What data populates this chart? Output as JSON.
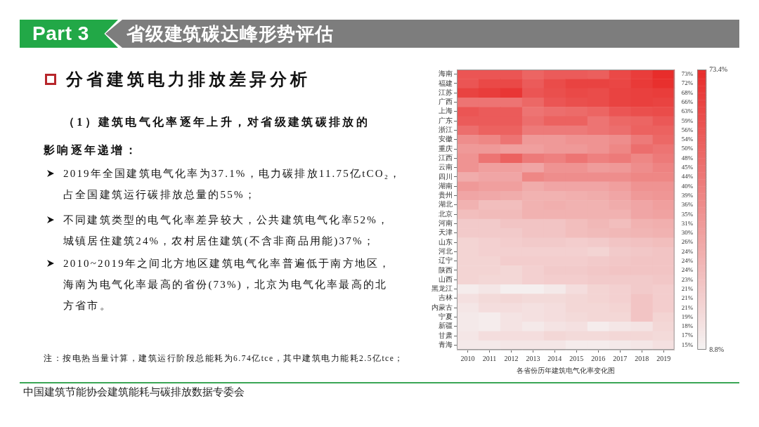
{
  "chart_data": {
    "type": "heatmap",
    "title": "省级建筑碳达峰形势评估",
    "subtitle": "分省建筑电力排放差异分析",
    "xlabel": "各省份历年建筑电气化率变化图",
    "annotations": [
      "Part 3",
      "（1）建筑电气化率逐年上升，对省级建筑碳排放的影响逐年递增：",
      "2019年全国建筑电气化率为37.1%，电力碳排放11.75亿tCO₂，占全国建筑运行碳排放总量的55%；",
      "不同建筑类型的电气化率差异较大，公共建筑电气化率52%，城镇居住建筑24%，农村居住建筑(不含非商品用能)37%；",
      "2010~2019年之间北方地区建筑电气化率普遍低于南方地区，海南为电气化率最高的省份(73%)，北京为电气化率最高的北方省市。",
      "注：按电热当量计算，建筑运行阶段总能耗为6.74亿tce，其中建筑电力能耗2.5亿tce；",
      "中国建筑节能协会建筑能耗与碳排放数据专委会"
    ],
    "categories": [
      "2010",
      "2011",
      "2012",
      "2013",
      "2014",
      "2015",
      "2016",
      "2017",
      "2018",
      "2019"
    ],
    "y_categories": [
      "海南",
      "福建",
      "江苏",
      "广西",
      "上海",
      "广东",
      "浙江",
      "安徽",
      "重庆",
      "江西",
      "云南",
      "四川",
      "湖南",
      "贵州",
      "湖北",
      "北京",
      "河南",
      "天津",
      "山东",
      "河北",
      "辽宁",
      "陕西",
      "山西",
      "黑龙江",
      "吉林",
      "内蒙古",
      "宁夏",
      "新疆",
      "甘肃",
      "青海"
    ],
    "y2_categories": [
      "73%",
      "72%",
      "68%",
      "66%",
      "63%",
      "59%",
      "56%",
      "54%",
      "50%",
      "48%",
      "45%",
      "44%",
      "40%",
      "39%",
      "36%",
      "35%",
      "31%",
      "30%",
      "26%",
      "24%",
      "24%",
      "24%",
      "23%",
      "21%",
      "21%",
      "21%",
      "19%",
      "18%",
      "17%",
      "15%"
    ],
    "cells": [
      [
        60,
        60,
        60,
        55,
        58,
        58,
        57,
        64,
        68,
        73
      ],
      [
        60,
        64,
        64,
        58,
        63,
        66,
        66,
        65,
        69,
        72
      ],
      [
        66,
        68,
        70,
        60,
        62,
        64,
        63,
        66,
        67,
        68
      ],
      [
        50,
        50,
        50,
        54,
        60,
        62,
        63,
        66,
        67,
        66
      ],
      [
        60,
        58,
        58,
        50,
        52,
        53,
        55,
        60,
        62,
        63
      ],
      [
        58,
        58,
        58,
        52,
        56,
        56,
        50,
        54,
        55,
        59
      ],
      [
        52,
        56,
        56,
        48,
        48,
        48,
        50,
        52,
        56,
        56
      ],
      [
        42,
        44,
        50,
        38,
        38,
        40,
        40,
        42,
        48,
        54
      ],
      [
        38,
        38,
        36,
        36,
        38,
        38,
        40,
        44,
        52,
        50
      ],
      [
        40,
        50,
        56,
        48,
        46,
        50,
        46,
        48,
        44,
        48
      ],
      [
        40,
        36,
        36,
        34,
        40,
        40,
        37,
        38,
        42,
        45
      ],
      [
        32,
        34,
        34,
        44,
        42,
        42,
        42,
        42,
        44,
        44
      ],
      [
        38,
        36,
        36,
        32,
        34,
        34,
        34,
        36,
        40,
        40
      ],
      [
        34,
        33,
        32,
        30,
        30,
        31,
        32,
        34,
        38,
        39
      ],
      [
        30,
        26,
        26,
        30,
        31,
        30,
        30,
        32,
        34,
        36
      ],
      [
        26,
        27,
        27,
        30,
        30,
        30,
        30,
        30,
        34,
        35
      ],
      [
        22,
        22,
        24,
        24,
        24,
        26,
        28,
        26,
        30,
        31
      ],
      [
        22,
        22,
        22,
        24,
        24,
        26,
        27,
        28,
        29,
        30
      ],
      [
        19,
        20,
        21,
        22,
        22,
        21,
        22,
        24,
        25,
        26
      ],
      [
        19,
        20,
        20,
        20,
        20,
        20,
        19,
        22,
        23,
        24
      ],
      [
        19,
        19,
        21,
        21,
        21,
        21,
        22,
        23,
        24,
        24
      ],
      [
        19,
        19,
        18,
        20,
        22,
        22,
        23,
        24,
        24,
        24
      ],
      [
        19,
        18,
        18,
        20,
        21,
        21,
        22,
        22,
        22,
        23
      ],
      [
        11,
        13,
        10,
        10,
        12,
        16,
        19,
        20,
        22,
        21
      ],
      [
        15,
        17,
        18,
        17,
        17,
        18,
        19,
        20,
        24,
        21
      ],
      [
        13,
        16,
        16,
        15,
        16,
        18,
        18,
        19,
        24,
        21
      ],
      [
        12,
        11,
        14,
        15,
        16,
        17,
        18,
        18,
        24,
        19
      ],
      [
        12,
        11,
        14,
        12,
        14,
        15,
        11,
        13,
        14,
        18
      ],
      [
        13,
        16,
        16,
        16,
        18,
        17,
        17,
        18,
        18,
        17
      ],
      [
        12,
        12,
        13,
        13,
        13,
        11,
        11,
        12,
        13,
        15
      ]
    ],
    "clim": [
      8.8,
      73.4
    ],
    "cticks": [
      {
        "value": 8.8,
        "label": "8.8%"
      },
      {
        "value": 73.4,
        "label": "73.4%"
      }
    ]
  }
}
